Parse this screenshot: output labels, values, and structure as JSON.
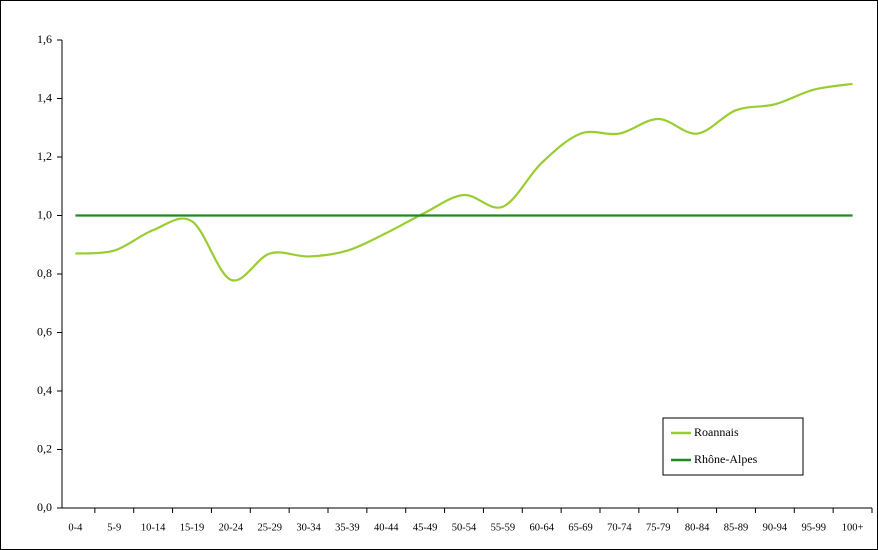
{
  "chart_data": {
    "type": "line",
    "categories": [
      "0-4",
      "5-9",
      "10-14",
      "15-19",
      "20-24",
      "25-29",
      "30-34",
      "35-39",
      "40-44",
      "45-49",
      "50-54",
      "55-59",
      "60-64",
      "65-69",
      "70-74",
      "75-79",
      "80-84",
      "85-89",
      "90-94",
      "95-99",
      "100+"
    ],
    "series": [
      {
        "name": "Roannais",
        "color": "#9acd32",
        "values": [
          0.87,
          0.88,
          0.95,
          0.98,
          0.78,
          0.87,
          0.86,
          0.88,
          0.94,
          1.01,
          1.07,
          1.03,
          1.18,
          1.28,
          1.28,
          1.33,
          1.28,
          1.36,
          1.38,
          1.43,
          1.45
        ]
      },
      {
        "name": "Rhône-Alpes",
        "color": "#1f8a1f",
        "values": [
          1,
          1,
          1,
          1,
          1,
          1,
          1,
          1,
          1,
          1,
          1,
          1,
          1,
          1,
          1,
          1,
          1,
          1,
          1,
          1,
          1
        ]
      }
    ],
    "ylim": [
      0,
      1.6
    ],
    "yticks": [
      {
        "value": 0,
        "label": "0,0"
      },
      {
        "value": 0.2,
        "label": "0,2"
      },
      {
        "value": 0.4,
        "label": "0,4"
      },
      {
        "value": 0.6,
        "label": "0,6"
      },
      {
        "value": 0.8,
        "label": "0,8"
      },
      {
        "value": 1,
        "label": "1,0"
      },
      {
        "value": 1.2,
        "label": "1,2"
      },
      {
        "value": 1.4,
        "label": "1,4"
      },
      {
        "value": 1.6,
        "label": "1,6"
      }
    ],
    "legend": "lower right"
  }
}
